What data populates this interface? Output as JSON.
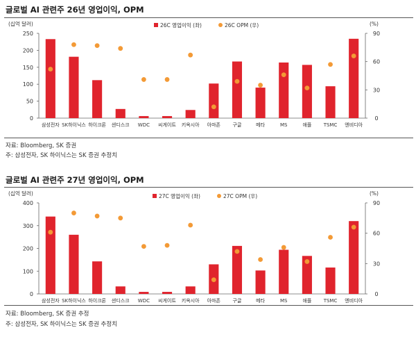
{
  "colors": {
    "bar": "#e0242d",
    "dot": "#f39a36",
    "axis": "#666666"
  },
  "panels": [
    {
      "title": "글로벌 AI 관련주 26년 영업이익, OPM",
      "source": "자료: Bloomberg, SK 증권",
      "note": "주: 삼성전자, SK 하이닉스는 SK 증권 추정치"
    },
    {
      "title": "글로벌 AI 관련주 27년 영업이익, OPM",
      "source": "자료: Bloomberg, SK 증권 추정",
      "note": "주: 삼성전자, SK 하이닉스는 SK 증권 추정치"
    }
  ],
  "chart_data": [
    {
      "type": "bar",
      "categories": [
        "삼성전자",
        "SK하이닉스",
        "하이크론",
        "샌디스크",
        "WDC",
        "씨게이트",
        "키옥시아",
        "아마존",
        "구글",
        "메타",
        "MS",
        "애플",
        "TSMC",
        "엔비디아"
      ],
      "ylabel_left": "(십억 달러)",
      "ylabel_right": "(%)",
      "ylim_left": [
        0,
        250
      ],
      "yticks_left": [
        0,
        50,
        100,
        150,
        200,
        250
      ],
      "ylim_right": [
        0,
        90
      ],
      "yticks_right": [
        0,
        30,
        60,
        90
      ],
      "series": [
        {
          "name": "26C 영업이익 (좌)",
          "kind": "bar",
          "axis": "left",
          "values": [
            233,
            181,
            112,
            27,
            6,
            6,
            24,
            102,
            167,
            90,
            164,
            157,
            94,
            234
          ]
        },
        {
          "name": "26C OPM (우)",
          "kind": "dot",
          "axis": "right",
          "values": [
            52,
            78,
            77,
            74,
            41,
            41,
            67,
            12,
            39,
            35,
            46,
            32,
            57,
            66
          ]
        }
      ]
    },
    {
      "type": "bar",
      "categories": [
        "삼성전자",
        "SK하이닉스",
        "하이크론",
        "샌디스크",
        "WDC",
        "씨게이트",
        "키옥시아",
        "아마존",
        "구글",
        "메타",
        "MS",
        "애플",
        "TSMC",
        "엔비디아"
      ],
      "ylabel_left": "(십억 달러)",
      "ylabel_right": "(%)",
      "ylim_left": [
        0,
        400
      ],
      "yticks_left": [
        0,
        100,
        200,
        300,
        400
      ],
      "ylim_right": [
        0,
        90
      ],
      "yticks_right": [
        0,
        30,
        60,
        90
      ],
      "series": [
        {
          "name": "27C 영업이익 (좌)",
          "kind": "bar",
          "axis": "left",
          "values": [
            340,
            260,
            143,
            33,
            9,
            9,
            33,
            130,
            211,
            103,
            194,
            167,
            116,
            320
          ]
        },
        {
          "name": "27C OPM (우)",
          "kind": "dot",
          "axis": "right",
          "values": [
            61,
            80,
            77,
            75,
            47,
            48,
            68,
            14,
            42,
            34,
            46,
            32,
            56,
            66
          ]
        }
      ]
    }
  ]
}
